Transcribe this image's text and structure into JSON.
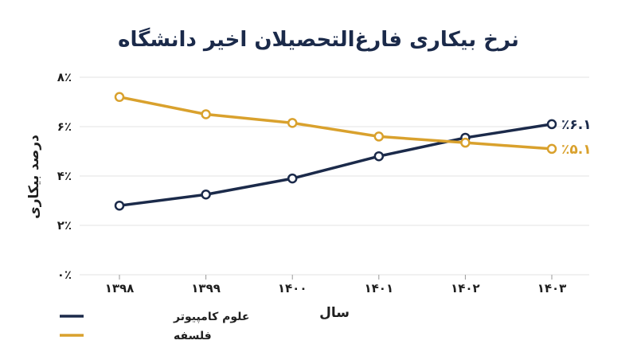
{
  "chart_data": {
    "type": "line",
    "title": "نرخ بیکاری فارغ‌التحصیلان اخیر دانشگاه",
    "xlabel": "سال",
    "ylabel": "درصد بیکاری",
    "categories": [
      "۱۳۹۸",
      "۱۳۹۹",
      "۱۴۰۰",
      "۱۴۰۱",
      "۱۴۰۲",
      "۱۴۰۳"
    ],
    "ylim": [
      0,
      8
    ],
    "yticks": [
      0,
      2,
      4,
      6,
      8
    ],
    "ytick_labels": [
      "۰٪",
      "۲٪",
      "۴٪",
      "۶٪",
      "۸٪"
    ],
    "grid": true,
    "legend_position": "bottom-left",
    "series": [
      {
        "name": "علوم کامپیوتر",
        "color": "#1b2a4a",
        "values": [
          2.8,
          3.25,
          3.9,
          4.8,
          5.55,
          6.1
        ],
        "end_label": "٪۶.۱"
      },
      {
        "name": "فلسفه",
        "color": "#d9a12d",
        "values": [
          7.2,
          6.5,
          6.15,
          5.6,
          5.35,
          5.1
        ],
        "end_label": "٪۵.۱"
      }
    ]
  }
}
